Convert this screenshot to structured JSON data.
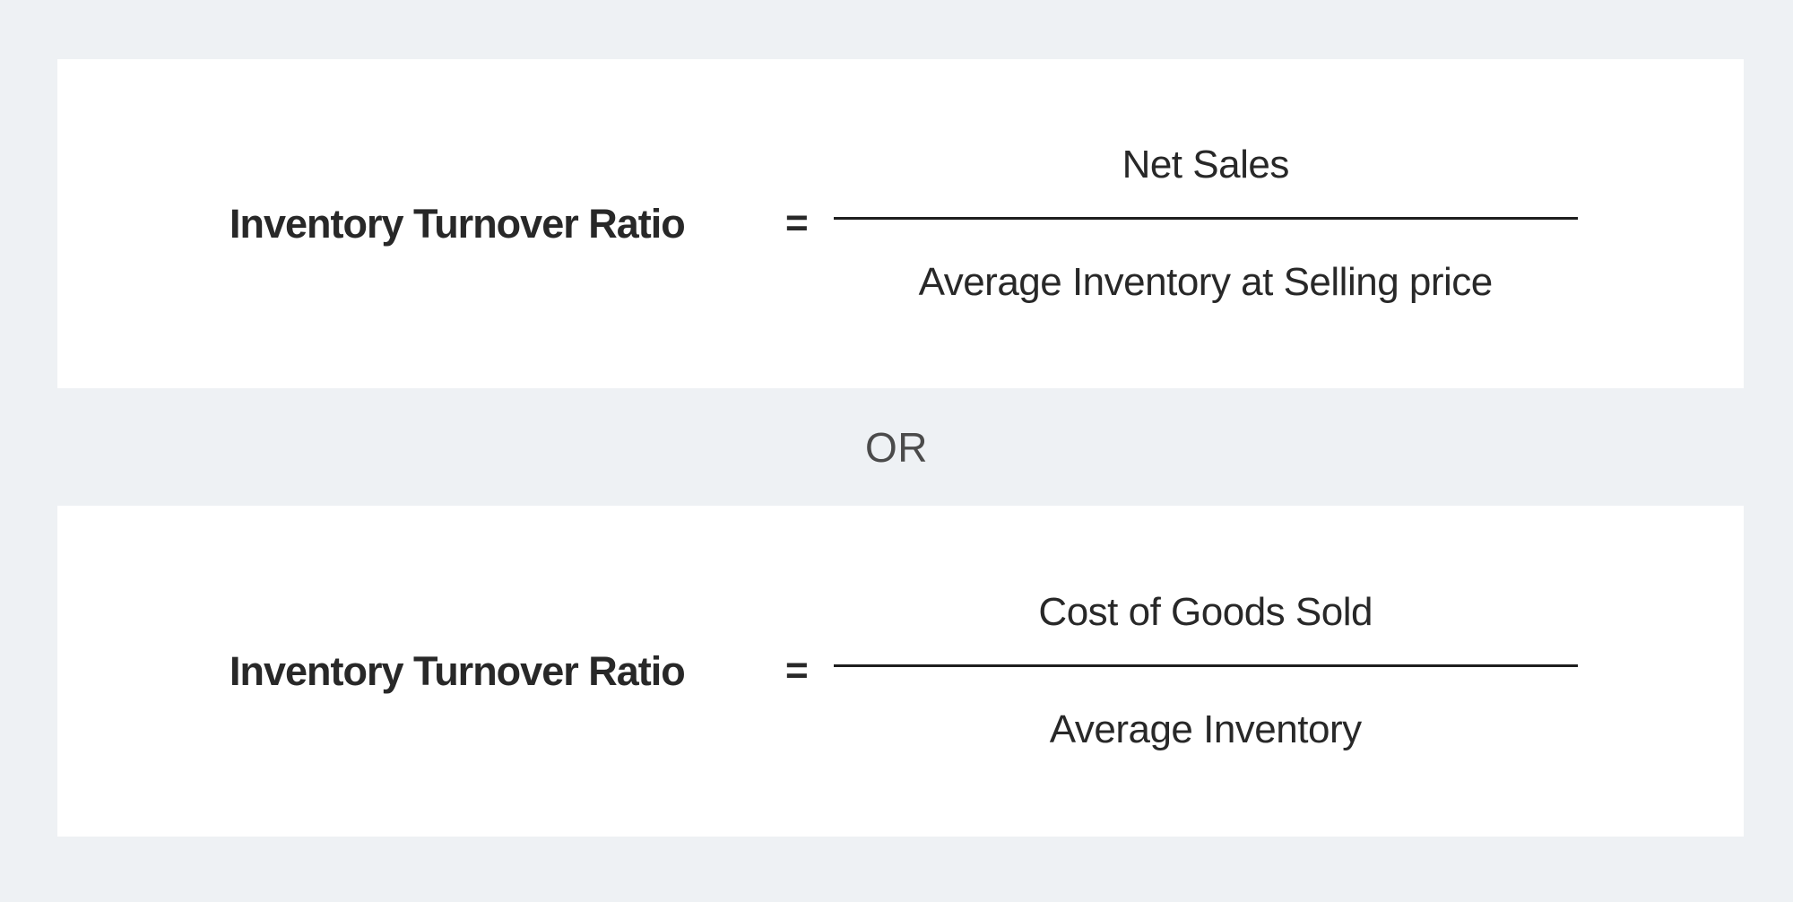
{
  "colors": {
    "bg": "#eef1f4",
    "card-bg": "#ffffff",
    "text": "#282828",
    "or": "#4b4b4b",
    "bar": "#1e1e1e"
  },
  "separator": "OR",
  "formulas": [
    {
      "label": "Inventory Turnover Ratio",
      "equals": "=",
      "numerator": "Net Sales",
      "denominator": "Average Inventory at Selling price"
    },
    {
      "label": "Inventory Turnover Ratio",
      "equals": "=",
      "numerator": "Cost of Goods Sold",
      "denominator": "Average Inventory"
    }
  ]
}
